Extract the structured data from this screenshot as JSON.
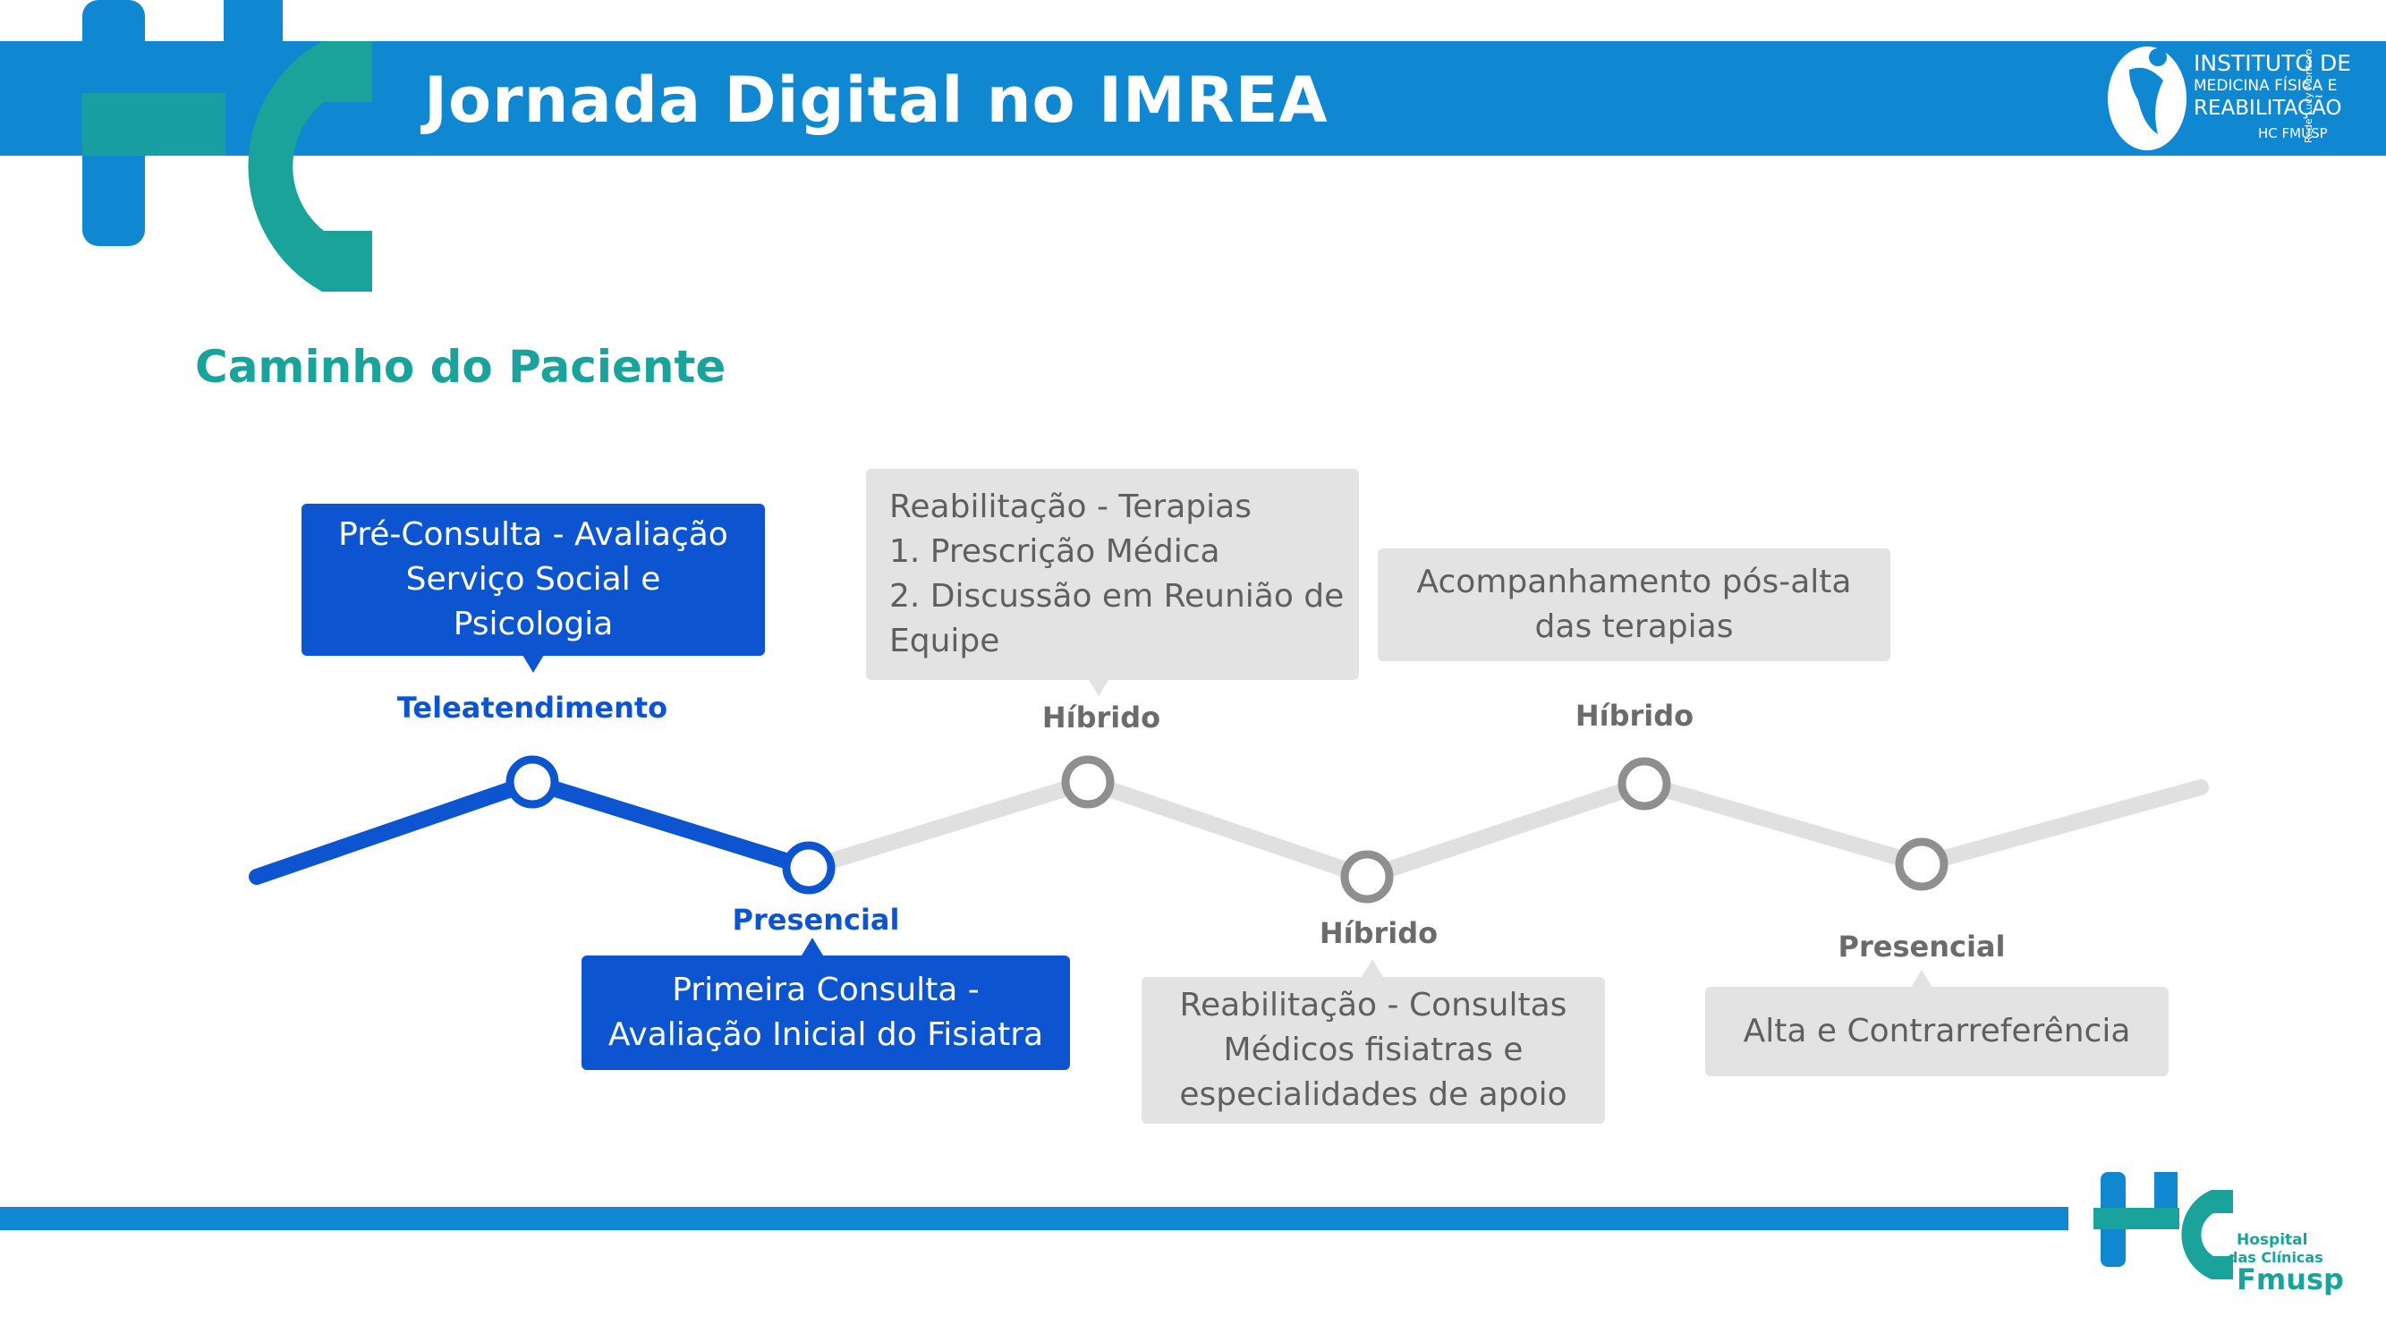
{
  "header": {
    "title": "Jornada Digital no IMREA",
    "logo": {
      "line1": "INSTITUTO DE",
      "line2": "MEDICINA FÍSICA E",
      "line3": "REABILITAÇÃO",
      "line4": "HC FMUSP",
      "vertical": "Rede Lucy Montoro"
    }
  },
  "subtitle": "Caminho do Paciente",
  "journey": {
    "steps": [
      {
        "mode": "Teleatendimento",
        "status": "active",
        "lines": [
          "Pré-Consulta - Avaliação",
          "Serviço Social e",
          "Psicologia"
        ]
      },
      {
        "mode": "Presencial",
        "status": "active",
        "lines": [
          "Primeira Consulta -",
          "Avaliação Inicial do Fisiatra"
        ]
      },
      {
        "mode": "Híbrido",
        "status": "inactive",
        "lines": [
          "Reabilitação - Terapias",
          "1. Prescrição Médica",
          "2. Discussão em Reunião de",
          "Equipe"
        ]
      },
      {
        "mode": "Híbrido",
        "status": "inactive",
        "lines": [
          "Reabilitação - Consultas",
          "Médicos fisiatras e",
          "especialidades de apoio"
        ]
      },
      {
        "mode": "Híbrido",
        "status": "inactive",
        "lines": [
          "Acompanhamento pós-alta",
          "das terapias"
        ]
      },
      {
        "mode": "Presencial",
        "status": "inactive",
        "lines": [
          "Alta e Contrarreferência"
        ]
      }
    ]
  },
  "footer_logo": {
    "line1": "Hospital",
    "line2": "das Clínicas",
    "line3": "Fmusp"
  },
  "colors": {
    "header_blue": "#0f87d1",
    "teal": "#1aa39a",
    "active_blue": "#0d55d0",
    "inactive_gray": "#e3e3e3",
    "node_gray": "#8f8f8f"
  }
}
